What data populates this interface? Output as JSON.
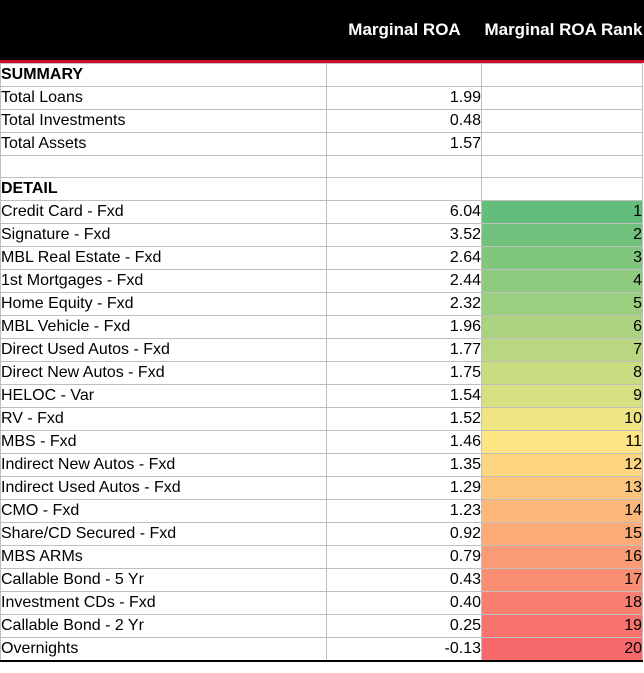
{
  "header": {
    "col_roa": "Marginal ROA",
    "col_rank": "Marginal ROA Rank"
  },
  "summary": {
    "label": "SUMMARY",
    "rows": [
      {
        "name": "Total Loans",
        "roa": "1.99"
      },
      {
        "name": "Total Investments",
        "roa": "0.48"
      },
      {
        "name": "Total Assets",
        "roa": "1.57"
      }
    ]
  },
  "detail": {
    "label": "DETAIL",
    "rows": [
      {
        "name": "Credit Card - Fxd",
        "roa": "6.04",
        "rank": "1",
        "color": "#63be7b"
      },
      {
        "name": "Signature - Fxd",
        "roa": "3.52",
        "rank": "2",
        "color": "#71c27c"
      },
      {
        "name": "MBL Real Estate - Fxd",
        "roa": "2.64",
        "rank": "3",
        "color": "#80c67d"
      },
      {
        "name": "1st Mortgages - Fxd",
        "roa": "2.44",
        "rank": "4",
        "color": "#8ecb7e"
      },
      {
        "name": "Home Equity - Fxd",
        "roa": "2.32",
        "rank": "5",
        "color": "#9ccf7f"
      },
      {
        "name": "MBL Vehicle - Fxd",
        "roa": "1.96",
        "rank": "6",
        "color": "#abd380"
      },
      {
        "name": "Direct Used Autos - Fxd",
        "roa": "1.77",
        "rank": "7",
        "color": "#b9d780"
      },
      {
        "name": "Direct New Autos - Fxd",
        "roa": "1.75",
        "rank": "8",
        "color": "#c8dc81"
      },
      {
        "name": "HELOC - Var",
        "roa": "1.54",
        "rank": "9",
        "color": "#d6e082"
      },
      {
        "name": "RV - Fxd",
        "roa": "1.52",
        "rank": "10",
        "color": "#f0e583"
      },
      {
        "name": "MBS - Fxd",
        "roa": "1.46",
        "rank": "11",
        "color": "#ffe483"
      },
      {
        "name": "Indirect New Autos - Fxd",
        "roa": "1.35",
        "rank": "12",
        "color": "#fed580"
      },
      {
        "name": "Indirect Used Autos - Fxd",
        "roa": "1.29",
        "rank": "13",
        "color": "#fdc67d"
      },
      {
        "name": "CMO - Fxd",
        "roa": "1.23",
        "rank": "14",
        "color": "#fcb87b"
      },
      {
        "name": "Share/CD Secured - Fxd",
        "roa": "0.92",
        "rank": "15",
        "color": "#fcaa78"
      },
      {
        "name": "MBS ARMs",
        "roa": "0.79",
        "rank": "16",
        "color": "#fb9c76"
      },
      {
        "name": "Callable Bond - 5 Yr",
        "roa": "0.43",
        "rank": "17",
        "color": "#fa8e73"
      },
      {
        "name": "Investment CDs - Fxd",
        "roa": "0.40",
        "rank": "18",
        "color": "#f98071"
      },
      {
        "name": "Callable Bond - 2 Yr",
        "roa": "0.25",
        "rank": "19",
        "color": "#f8736e"
      },
      {
        "name": "Overnights",
        "roa": "-0.13",
        "rank": "20",
        "color": "#f8696b"
      }
    ]
  }
}
